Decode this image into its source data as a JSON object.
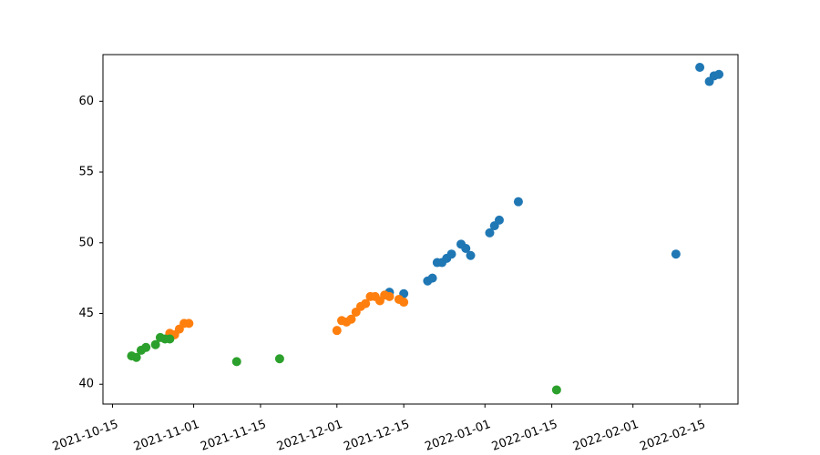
{
  "chart_data": {
    "type": "scatter",
    "title": "",
    "xlabel": "",
    "ylabel": "",
    "x_axis_kind": "date",
    "xlim": [
      "2021-10-13",
      "2022-02-23"
    ],
    "ylim": [
      38.6,
      63.3
    ],
    "x_ticks": [
      "2021-10-15",
      "2021-11-01",
      "2021-11-15",
      "2021-12-01",
      "2021-12-15",
      "2022-01-01",
      "2022-01-15",
      "2022-02-01",
      "2022-02-15"
    ],
    "y_ticks": [
      40,
      45,
      50,
      55,
      60
    ],
    "x_tick_rotation_deg": 20,
    "grid": false,
    "legend": "none",
    "series": [
      {
        "color": "#1f77b4",
        "points": [
          {
            "x": "2021-12-12",
            "y": 46.5
          },
          {
            "x": "2021-12-15",
            "y": 46.4
          },
          {
            "x": "2021-12-20",
            "y": 47.3
          },
          {
            "x": "2021-12-21",
            "y": 47.5
          },
          {
            "x": "2021-12-22",
            "y": 48.6
          },
          {
            "x": "2021-12-23",
            "y": 48.6
          },
          {
            "x": "2021-12-24",
            "y": 48.9
          },
          {
            "x": "2021-12-25",
            "y": 49.2
          },
          {
            "x": "2021-12-27",
            "y": 49.9
          },
          {
            "x": "2021-12-28",
            "y": 49.6
          },
          {
            "x": "2021-12-29",
            "y": 49.1
          },
          {
            "x": "2022-01-02",
            "y": 50.7
          },
          {
            "x": "2022-01-03",
            "y": 51.2
          },
          {
            "x": "2022-01-04",
            "y": 51.6
          },
          {
            "x": "2022-01-08",
            "y": 52.9
          },
          {
            "x": "2022-02-10",
            "y": 49.2
          },
          {
            "x": "2022-02-15",
            "y": 62.4
          },
          {
            "x": "2022-02-17",
            "y": 61.4
          },
          {
            "x": "2022-02-18",
            "y": 61.8
          },
          {
            "x": "2022-02-19",
            "y": 61.9
          }
        ]
      },
      {
        "color": "#ff7f0e",
        "points": [
          {
            "x": "2021-10-27",
            "y": 43.6
          },
          {
            "x": "2021-10-28",
            "y": 43.5
          },
          {
            "x": "2021-10-29",
            "y": 43.9
          },
          {
            "x": "2021-10-30",
            "y": 44.3
          },
          {
            "x": "2021-10-31",
            "y": 44.3
          },
          {
            "x": "2021-12-01",
            "y": 43.8
          },
          {
            "x": "2021-12-02",
            "y": 44.5
          },
          {
            "x": "2021-12-03",
            "y": 44.4
          },
          {
            "x": "2021-12-04",
            "y": 44.6
          },
          {
            "x": "2021-12-05",
            "y": 45.1
          },
          {
            "x": "2021-12-06",
            "y": 45.5
          },
          {
            "x": "2021-12-07",
            "y": 45.7
          },
          {
            "x": "2021-12-08",
            "y": 46.2
          },
          {
            "x": "2021-12-09",
            "y": 46.2
          },
          {
            "x": "2021-12-10",
            "y": 45.9
          },
          {
            "x": "2021-12-11",
            "y": 46.3
          },
          {
            "x": "2021-12-12",
            "y": 46.2
          },
          {
            "x": "2021-12-14",
            "y": 46.0
          },
          {
            "x": "2021-12-15",
            "y": 45.8
          }
        ]
      },
      {
        "color": "#2ca02c",
        "points": [
          {
            "x": "2021-10-19",
            "y": 42.0
          },
          {
            "x": "2021-10-20",
            "y": 41.9
          },
          {
            "x": "2021-10-21",
            "y": 42.4
          },
          {
            "x": "2021-10-22",
            "y": 42.6
          },
          {
            "x": "2021-10-24",
            "y": 42.8
          },
          {
            "x": "2021-10-25",
            "y": 43.3
          },
          {
            "x": "2021-10-26",
            "y": 43.2
          },
          {
            "x": "2021-10-27",
            "y": 43.2
          },
          {
            "x": "2021-11-10",
            "y": 41.6
          },
          {
            "x": "2021-11-19",
            "y": 41.8
          },
          {
            "x": "2022-01-16",
            "y": 39.6
          }
        ]
      }
    ]
  }
}
